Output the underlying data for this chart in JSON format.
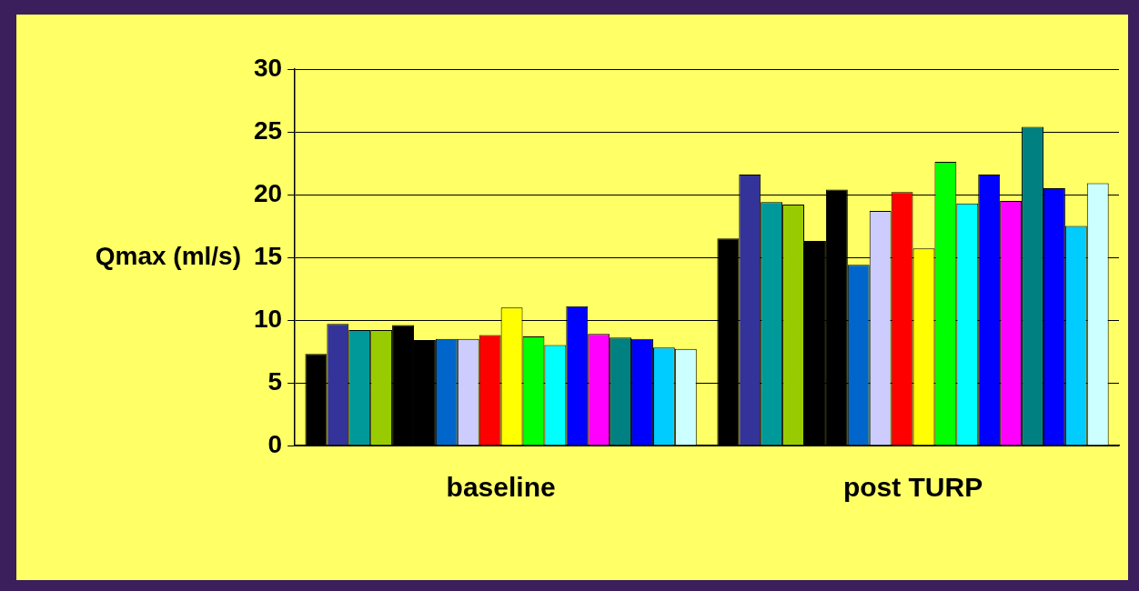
{
  "chart_data": {
    "type": "bar",
    "ylabel": "Qmax (ml/s)",
    "categories": [
      "baseline",
      "post TURP"
    ],
    "ylim": [
      0,
      30
    ],
    "yticks": [
      0,
      5,
      10,
      15,
      20,
      25,
      30
    ],
    "grid": "y",
    "legend": false,
    "series": [
      {
        "color": "#000000",
        "values": [
          7.3,
          16.5
        ]
      },
      {
        "color": "#333399",
        "values": [
          9.7,
          21.6
        ]
      },
      {
        "color": "#009999",
        "values": [
          9.2,
          19.4
        ]
      },
      {
        "color": "#99cc00",
        "values": [
          9.2,
          19.2
        ]
      },
      {
        "color": "#000000",
        "values": [
          9.6,
          16.3
        ]
      },
      {
        "color": "#000000",
        "values": [
          8.4,
          20.4
        ]
      },
      {
        "color": "#0066cc",
        "values": [
          8.5,
          14.4
        ]
      },
      {
        "color": "#ccccff",
        "values": [
          8.5,
          18.7
        ]
      },
      {
        "color": "#ff0000",
        "values": [
          8.8,
          20.2
        ]
      },
      {
        "color": "#ffff00",
        "values": [
          11.0,
          15.7
        ]
      },
      {
        "color": "#00ff00",
        "values": [
          8.7,
          22.6
        ]
      },
      {
        "color": "#00ffff",
        "values": [
          8.0,
          19.3
        ]
      },
      {
        "color": "#0000ff",
        "values": [
          11.1,
          21.6
        ]
      },
      {
        "color": "#ff00ff",
        "values": [
          8.9,
          19.5
        ]
      },
      {
        "color": "#008080",
        "values": [
          8.6,
          25.4
        ]
      },
      {
        "color": "#0000ff",
        "values": [
          8.5,
          20.5
        ]
      },
      {
        "color": "#00ccff",
        "values": [
          7.8,
          17.5
        ]
      },
      {
        "color": "#ccffff",
        "values": [
          7.7,
          20.9
        ]
      }
    ]
  }
}
